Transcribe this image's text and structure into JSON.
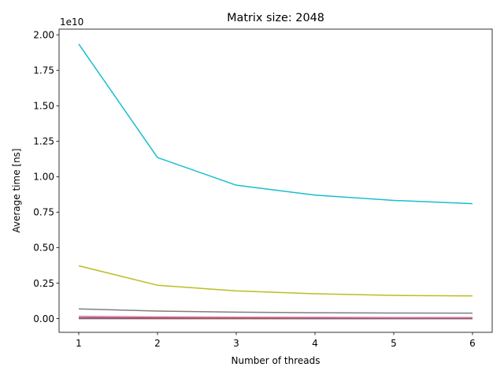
{
  "chart_data": {
    "type": "line",
    "title": "Matrix size: 2048",
    "xlabel": "Number of threads",
    "ylabel": "Average time [ns]",
    "y_offset_label": "1e10",
    "x": [
      1,
      2,
      3,
      4,
      5,
      6
    ],
    "xlim": [
      0.75,
      6.25
    ],
    "ylim": [
      -0.097,
      2.04
    ],
    "y_multiplier": 10000000000,
    "x_ticks": [
      "1",
      "2",
      "3",
      "4",
      "5",
      "6"
    ],
    "y_ticks": [
      "0.00",
      "0.25",
      "0.50",
      "0.75",
      "1.00",
      "1.25",
      "1.50",
      "1.75",
      "2.00"
    ],
    "y_tick_values": [
      0.0,
      0.25,
      0.5,
      0.75,
      1.0,
      1.25,
      1.5,
      1.75,
      2.0
    ],
    "grid": false,
    "legend": "none",
    "series": [
      {
        "color": "#17becf",
        "values": [
          1.935,
          1.135,
          0.94,
          0.87,
          0.833,
          0.81
        ]
      },
      {
        "color": "#bcbd22",
        "values": [
          0.372,
          0.235,
          0.195,
          0.175,
          0.163,
          0.16
        ]
      },
      {
        "color": "#7f7f7f",
        "values": [
          0.068,
          0.053,
          0.045,
          0.041,
          0.039,
          0.038
        ]
      },
      {
        "color": "#e377c2",
        "values": [
          0.016,
          0.012,
          0.01,
          0.009,
          0.008,
          0.008
        ]
      },
      {
        "color": "#8c564b",
        "values": [
          0.006,
          0.004,
          0.003,
          0.003,
          0.002,
          0.002
        ]
      },
      {
        "color": "#9467bd",
        "values": [
          0.003,
          0.002,
          0.002,
          0.001,
          0.001,
          0.001
        ]
      },
      {
        "color": "#d62728",
        "values": [
          0.002,
          0.001,
          0.001,
          0.001,
          0.001,
          0.001
        ]
      },
      {
        "color": "#2ca02c",
        "values": [
          0.001,
          0.001,
          0.001,
          0.0,
          0.0,
          0.0
        ]
      },
      {
        "color": "#ff7f0e",
        "values": [
          0.001,
          0.0,
          0.0,
          0.0,
          0.0,
          0.0
        ]
      },
      {
        "color": "#1f77b4",
        "values": [
          0.0,
          0.0,
          0.0,
          0.0,
          0.0,
          0.0
        ]
      }
    ]
  }
}
